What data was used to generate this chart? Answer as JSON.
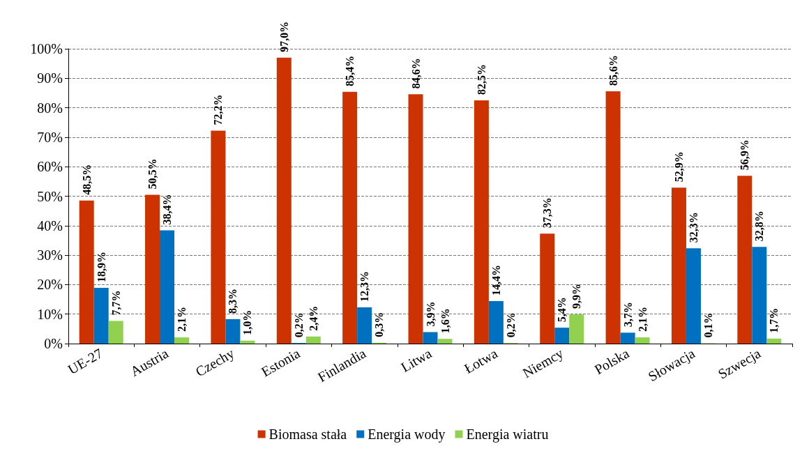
{
  "chart_data": {
    "type": "bar",
    "categories": [
      "UE-27",
      "Austria",
      "Czechy",
      "Estonia",
      "Finlandia",
      "Litwa",
      "Łotwa",
      "Niemcy",
      "Polska",
      "Słowacja",
      "Szwecja"
    ],
    "series": [
      {
        "name": "Biomasa stała",
        "color": "#cc3300",
        "values": [
          48.5,
          50.5,
          72.2,
          97.0,
          85.4,
          84.6,
          82.5,
          37.3,
          85.6,
          52.9,
          56.9
        ],
        "value_labels": [
          "48,5%",
          "50,5%",
          "72,2%",
          "97,0%",
          "85,4%",
          "84,6%",
          "82,5%",
          "37,3%",
          "85,6%",
          "52,9%",
          "56,9%"
        ]
      },
      {
        "name": "Energia wody",
        "color": "#0070c0",
        "values": [
          18.9,
          38.4,
          8.3,
          0.2,
          12.3,
          3.9,
          14.4,
          5.4,
          3.7,
          32.3,
          32.8
        ],
        "value_labels": [
          "18,9%",
          "38,4%",
          "8,3%",
          "0,2%",
          "12,3%",
          "3,9%",
          "14,4%",
          "5,4%",
          "3,7%",
          "32,3%",
          "32,8%"
        ]
      },
      {
        "name": "Energia wiatru",
        "color": "#92d050",
        "values": [
          7.7,
          2.1,
          1.0,
          2.4,
          0.3,
          1.6,
          0.2,
          9.9,
          2.1,
          0.1,
          1.7
        ],
        "value_labels": [
          "7,7%",
          "2,1%",
          "1,0%",
          "2,4%",
          "0,3%",
          "1,6%",
          "0,2%",
          "9,9%",
          "2,1%",
          "0,1%",
          "1,7%"
        ]
      }
    ],
    "ylim": [
      0,
      100
    ],
    "yticks": [
      {
        "value": 0,
        "label": "0%"
      },
      {
        "value": 10,
        "label": "10%"
      },
      {
        "value": 20,
        "label": "20%"
      },
      {
        "value": 30,
        "label": "30%"
      },
      {
        "value": 40,
        "label": "40%"
      },
      {
        "value": 50,
        "label": "50%"
      },
      {
        "value": 60,
        "label": "60%"
      },
      {
        "value": 70,
        "label": "70%"
      },
      {
        "value": 80,
        "label": "80%"
      },
      {
        "value": 90,
        "label": "90%"
      },
      {
        "value": 100,
        "label": "100%"
      }
    ],
    "grid": "y",
    "legend": "bottom"
  }
}
